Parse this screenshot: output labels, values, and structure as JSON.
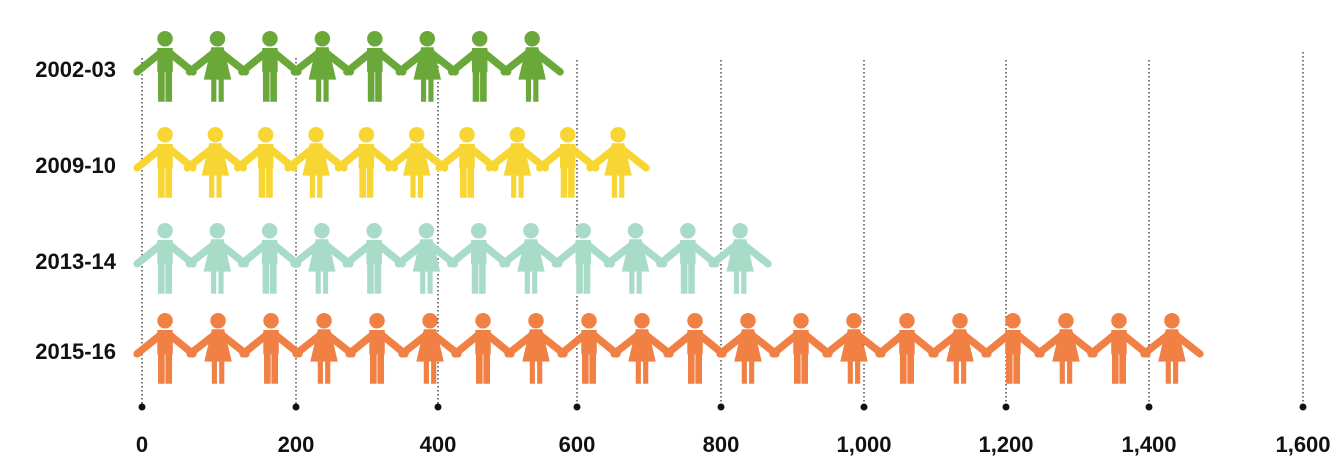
{
  "chart_data": {
    "type": "bar",
    "title": "",
    "xlabel": "",
    "ylabel": "",
    "xlim": [
      0,
      1600
    ],
    "x_ticks": [
      "0",
      "200",
      "400",
      "600",
      "800",
      "1,000",
      "1,200",
      "1,400",
      "1,600"
    ],
    "x_tick_values": [
      0,
      200,
      400,
      600,
      800,
      1000,
      1200,
      1400,
      1600
    ],
    "grid": "vertical-dotted",
    "categories": [
      "2002-03",
      "2009-10",
      "2013-14",
      "2015-16"
    ],
    "values": [
      580,
      700,
      870,
      1470
    ],
    "icon_unit": "person-figure",
    "icon_counts": [
      8,
      10,
      12,
      20
    ],
    "colors": [
      "#6aa83a",
      "#f7d633",
      "#a8dcc8",
      "#f08044"
    ]
  }
}
